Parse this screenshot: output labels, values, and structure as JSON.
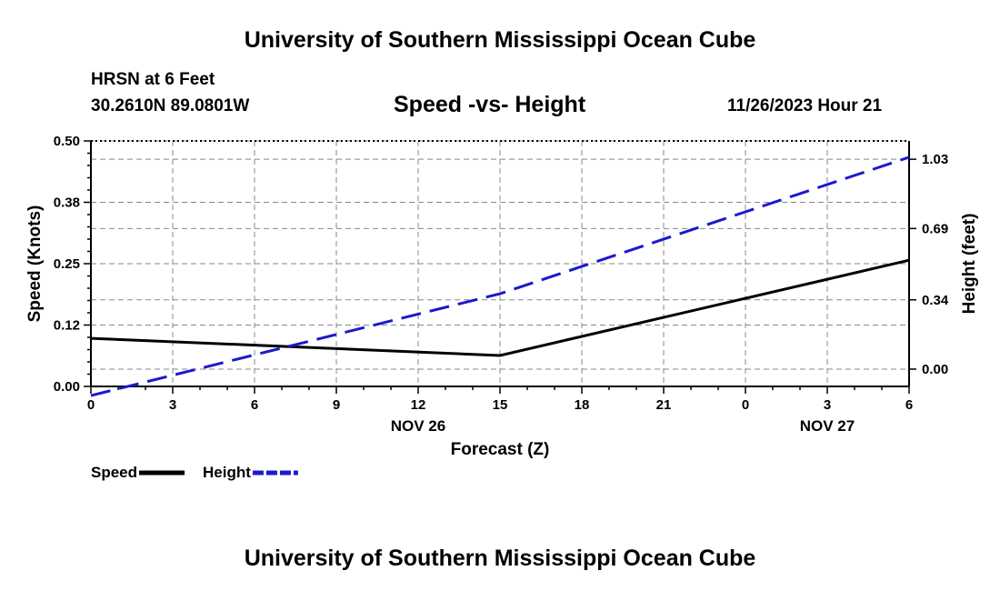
{
  "header": {
    "title": "University of Southern Mississippi Ocean Cube",
    "station": "HRSN at 6 Feet",
    "coordinates": "30.2610N  89.0801W",
    "chart_title": "Speed -vs- Height",
    "datetime": "11/26/2023 Hour 21"
  },
  "footer": {
    "title": "University of Southern Mississippi Ocean Cube"
  },
  "colors": {
    "speed": "#000000",
    "height": "#1a1acc",
    "grid": "#888888"
  },
  "chart_data": {
    "type": "line",
    "title": "Speed -vs- Height",
    "xlabel": "Forecast (Z)",
    "ylabel": "Speed (Knots)",
    "y2label": "Height (feet)",
    "x_ticks": [
      "0",
      "3",
      "6",
      "9",
      "12",
      "15",
      "18",
      "21",
      "0",
      "3",
      "6"
    ],
    "x_range": [
      0,
      30
    ],
    "date_labels": [
      {
        "text": "NOV 26",
        "at_hour": 12
      },
      {
        "text": "NOV 27",
        "at_hour": 27
      }
    ],
    "ylim": [
      0,
      0.5
    ],
    "y_ticks": [
      "0.00",
      "0.12",
      "0.25",
      "0.38",
      "0.50"
    ],
    "y2lim": [
      -0.085,
      1.12
    ],
    "y2_ticks": [
      {
        "label": "0.00",
        "value": 0.0
      },
      {
        "label": "0.34",
        "value": 0.34
      },
      {
        "label": "0.69",
        "value": 0.69
      },
      {
        "label": "1.03",
        "value": 1.03
      }
    ],
    "series": [
      {
        "name": "Speed",
        "axis": "left",
        "style": "solid",
        "x": [
          0,
          15,
          30
        ],
        "values": [
          0.098,
          0.063,
          0.257
        ]
      },
      {
        "name": "Height",
        "axis": "right",
        "style": "dashed",
        "x": [
          0,
          15,
          30
        ],
        "values": [
          -0.13,
          0.37,
          1.04
        ]
      }
    ],
    "legend": [
      {
        "name": "Speed",
        "style": "solid"
      },
      {
        "name": "Height",
        "style": "dashed"
      }
    ],
    "grid": true
  }
}
